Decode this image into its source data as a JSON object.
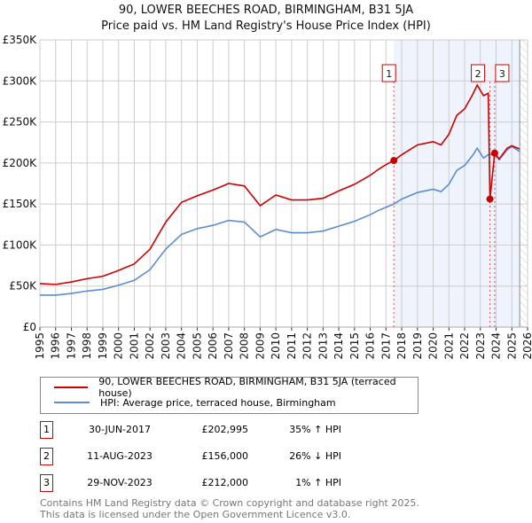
{
  "chart_data": {
    "type": "line",
    "title": "90, LOWER BEECHES ROAD, BIRMINGHAM, B31 5JA",
    "subtitle": "Price paid vs. HM Land Registry's House Price Index (HPI)",
    "xlim": [
      1995,
      2026
    ],
    "ylim": [
      0,
      350000
    ],
    "x_ticks": [
      "1995",
      "1996",
      "1997",
      "1998",
      "1999",
      "2000",
      "2001",
      "2002",
      "2003",
      "2004",
      "2005",
      "2006",
      "2007",
      "2008",
      "2009",
      "2010",
      "2011",
      "2012",
      "2013",
      "2014",
      "2015",
      "2016",
      "2017",
      "2018",
      "2019",
      "2020",
      "2021",
      "2022",
      "2023",
      "2024",
      "2025",
      "2026"
    ],
    "y_ticks": [
      {
        "v": 0,
        "label": "£0"
      },
      {
        "v": 50000,
        "label": "£50K"
      },
      {
        "v": 100000,
        "label": "£100K"
      },
      {
        "v": 150000,
        "label": "£150K"
      },
      {
        "v": 200000,
        "label": "£200K"
      },
      {
        "v": 250000,
        "label": "£250K"
      },
      {
        "v": 300000,
        "label": "£300K"
      },
      {
        "v": 350000,
        "label": "£350K"
      }
    ],
    "grid": true,
    "series": [
      {
        "name": "90, LOWER BEECHES ROAD, BIRMINGHAM, B31 5JA (terraced house)",
        "color": "#cc0000",
        "points": [
          [
            1995,
            53000
          ],
          [
            1996,
            52000
          ],
          [
            1997,
            55000
          ],
          [
            1998,
            59000
          ],
          [
            1999,
            62000
          ],
          [
            2000,
            69000
          ],
          [
            2001,
            77000
          ],
          [
            2002,
            95000
          ],
          [
            2003,
            128000
          ],
          [
            2004,
            152000
          ],
          [
            2005,
            160000
          ],
          [
            2006,
            167000
          ],
          [
            2007,
            175000
          ],
          [
            2008,
            172000
          ],
          [
            2009,
            148000
          ],
          [
            2010,
            161000
          ],
          [
            2011,
            155000
          ],
          [
            2012,
            155000
          ],
          [
            2013,
            157000
          ],
          [
            2014,
            166000
          ],
          [
            2015,
            174000
          ],
          [
            2016,
            185000
          ],
          [
            2016.5,
            192000
          ],
          [
            2017,
            198000
          ],
          [
            2017.5,
            202995
          ],
          [
            2018,
            210000
          ],
          [
            2019,
            222000
          ],
          [
            2020,
            226000
          ],
          [
            2020.5,
            222000
          ],
          [
            2021,
            235000
          ],
          [
            2021.5,
            258000
          ],
          [
            2022,
            266000
          ],
          [
            2022.5,
            283000
          ],
          [
            2022.8,
            295000
          ],
          [
            2023.2,
            282000
          ],
          [
            2023.5,
            285000
          ],
          [
            2023.61,
            156000
          ],
          [
            2023.91,
            212000
          ],
          [
            2024.2,
            205000
          ],
          [
            2024.7,
            218000
          ],
          [
            2025,
            221000
          ],
          [
            2025.5,
            217000
          ]
        ]
      },
      {
        "name": "HPI: Average price, terraced house, Birmingham",
        "color": "#5b8ccf",
        "points": [
          [
            1995,
            39000
          ],
          [
            1996,
            39000
          ],
          [
            1997,
            41000
          ],
          [
            1998,
            44000
          ],
          [
            1999,
            46000
          ],
          [
            2000,
            51000
          ],
          [
            2001,
            57000
          ],
          [
            2002,
            70000
          ],
          [
            2003,
            95000
          ],
          [
            2004,
            113000
          ],
          [
            2005,
            120000
          ],
          [
            2006,
            124000
          ],
          [
            2007,
            130000
          ],
          [
            2008,
            128000
          ],
          [
            2009,
            110000
          ],
          [
            2010,
            119000
          ],
          [
            2011,
            115000
          ],
          [
            2012,
            115000
          ],
          [
            2013,
            117000
          ],
          [
            2014,
            123000
          ],
          [
            2015,
            129000
          ],
          [
            2016,
            137000
          ],
          [
            2016.5,
            142000
          ],
          [
            2017,
            146000
          ],
          [
            2017.5,
            150000
          ],
          [
            2018,
            156000
          ],
          [
            2019,
            164000
          ],
          [
            2020,
            168000
          ],
          [
            2020.5,
            165000
          ],
          [
            2021,
            174000
          ],
          [
            2021.5,
            191000
          ],
          [
            2022,
            197000
          ],
          [
            2022.5,
            209000
          ],
          [
            2022.8,
            218000
          ],
          [
            2023.2,
            206000
          ],
          [
            2023.5,
            210000
          ],
          [
            2023.91,
            210000
          ],
          [
            2024.2,
            204000
          ],
          [
            2024.7,
            216000
          ],
          [
            2025,
            220000
          ],
          [
            2025.5,
            214000
          ]
        ]
      }
    ],
    "sales": [
      {
        "n": "1",
        "x": 2017.5,
        "value": 202995,
        "date": "30-JUN-2017",
        "price": "£202,995",
        "pct": "35% ↑ HPI"
      },
      {
        "n": "2",
        "x": 2023.61,
        "value": 156000,
        "date": "11-AUG-2023",
        "price": "£156,000",
        "pct": "26% ↓ HPI"
      },
      {
        "n": "3",
        "x": 2023.91,
        "value": 212000,
        "date": "29-NOV-2023",
        "price": "£212,000",
        "pct": "1% ↑ HPI"
      }
    ],
    "shaded_from": 2017.5,
    "forecast_from": 2025.5
  },
  "footer": [
    "Contains HM Land Registry data © Crown copyright and database right 2025.",
    "This data is licensed under the Open Government Licence v3.0."
  ]
}
